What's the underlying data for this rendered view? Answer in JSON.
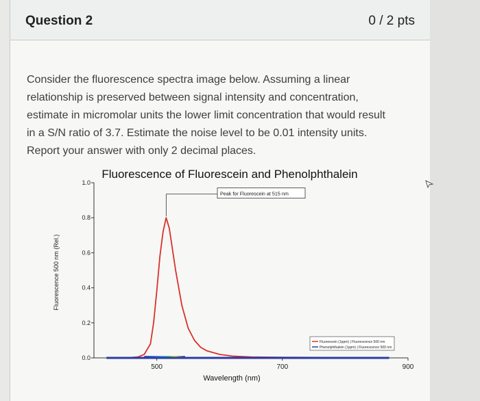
{
  "question": {
    "title": "Question 2",
    "points": "0 / 2 pts",
    "lines": [
      "Consider the fluorescence spectra image below. Assuming a linear",
      "relationship is preserved between signal intensity and concentration,",
      "estimate in micromolar units the lower limit concentration that would result",
      "in a S/N ratio of 3.7. Estimate the noise level to be 0.01 intensity units.",
      "Report your answer with only 2 decimal places."
    ]
  },
  "chart_data": {
    "type": "line",
    "title": "Fluorescence of Fluorescein and Phenolphthalein",
    "xlabel": "Wavelength (nm)",
    "ylabel": "Fluorescence 500 nm (Rel.)",
    "xlim": [
      400,
      900
    ],
    "ylim": [
      0,
      1.0
    ],
    "x_ticks": [
      "500",
      "700",
      "900"
    ],
    "x_tick_values": [
      500,
      700,
      900
    ],
    "y_ticks": [
      "0.0",
      "0.2",
      "0.4",
      "0.6",
      "0.8",
      "1.0"
    ],
    "y_tick_values": [
      0,
      0.2,
      0.4,
      0.6,
      0.8,
      1.0
    ],
    "annotation": "Peak for Fluorescein at 515 nm",
    "legend": [
      "Fluorescein (1ppm) | Fluorescence 500 nm",
      "Phenolphthalein (1ppm) | Fluorescence 500 nm"
    ],
    "legend_position": "bottom-right",
    "series": [
      {
        "name": "Fluorescein (1ppm) | Fluorescence 500 nm",
        "color": "#d9302a",
        "x": [
          420,
          450,
          470,
          480,
          490,
          495,
          500,
          505,
          510,
          515,
          520,
          525,
          530,
          540,
          550,
          560,
          570,
          580,
          600,
          620,
          650,
          700,
          800,
          870
        ],
        "y": [
          0.0,
          0.0,
          0.005,
          0.02,
          0.08,
          0.2,
          0.38,
          0.58,
          0.72,
          0.8,
          0.74,
          0.62,
          0.5,
          0.3,
          0.17,
          0.1,
          0.06,
          0.04,
          0.02,
          0.01,
          0.005,
          0.003,
          0.002,
          0.002
        ]
      },
      {
        "name": "Phenolphthalein (1ppm) | Fluorescence 500 nm",
        "color": "#2a3ba6",
        "x": [
          420,
          500,
          600,
          700,
          800,
          870
        ],
        "y": [
          0.0,
          0.0,
          0.0,
          0.0,
          0.0,
          0.0
        ]
      }
    ]
  }
}
